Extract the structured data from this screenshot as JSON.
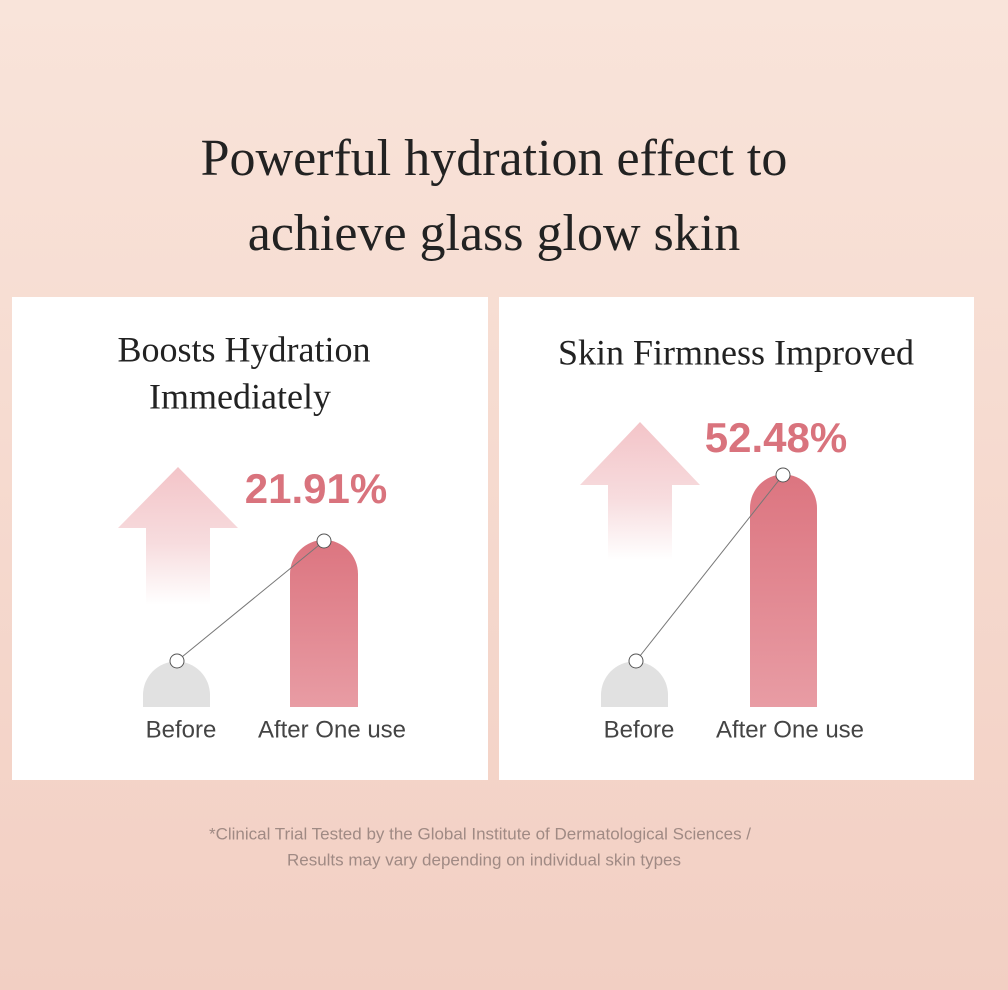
{
  "header": {
    "title_lines": [
      "Powerful hydration effect to",
      "achieve glass glow skin"
    ]
  },
  "panels": [
    {
      "title_lines": [
        "Boosts Hydration",
        "Immediately"
      ],
      "value": "21.91%",
      "labels": [
        "Before",
        "After One use"
      ]
    },
    {
      "title_lines": [
        "Skin Firmness Improved"
      ],
      "value": "52.48%",
      "labels": [
        "Before",
        "After One use"
      ]
    }
  ],
  "footnote": [
    "*Clinical Trial Tested by the Global Institute of Dermatological Sciences /",
    "Results may vary depending on individual skin types"
  ]
}
